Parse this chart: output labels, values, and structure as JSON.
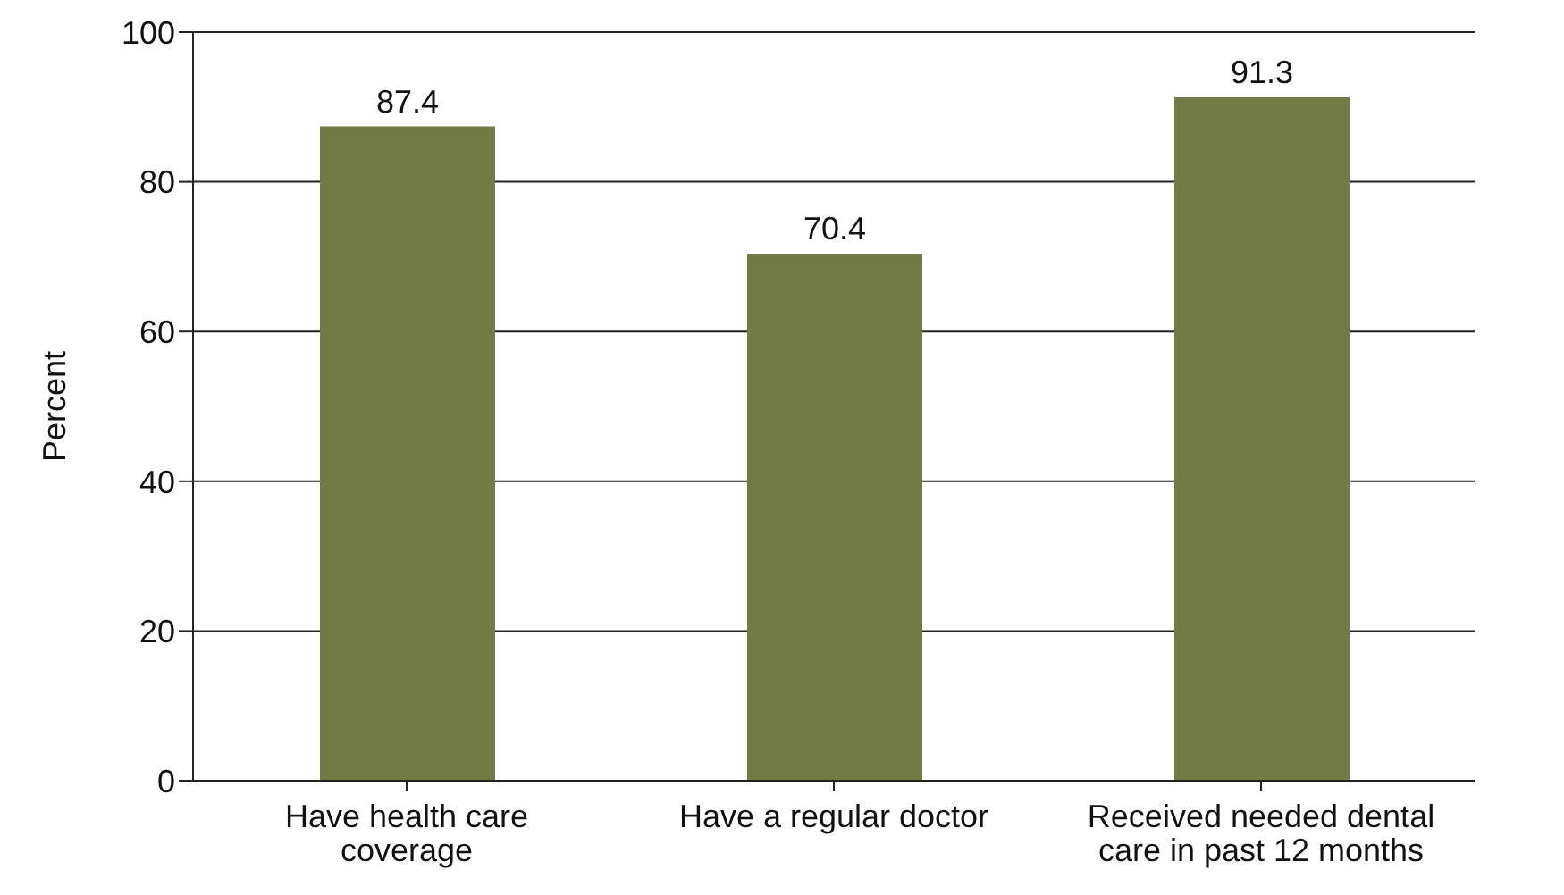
{
  "chart_data": {
    "type": "bar",
    "categories": [
      "Have health care coverage",
      "Have a regular doctor",
      "Received needed dental care in past 12 months"
    ],
    "values": [
      87.4,
      70.4,
      91.3
    ],
    "color": "#717b43",
    "ylabel": "Percent",
    "ylim": [
      0,
      100
    ],
    "yticks": [
      0,
      20,
      40,
      60,
      80,
      100
    ],
    "grid": "y",
    "data_labels": true
  }
}
